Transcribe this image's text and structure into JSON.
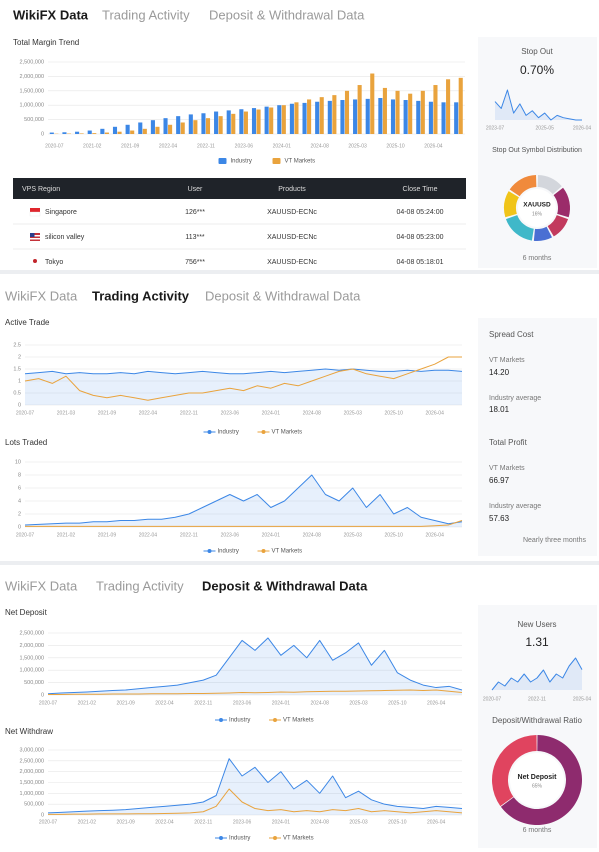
{
  "tabs": [
    "WikiFX Data",
    "Trading Activity",
    "Deposit & Withdrawal Data"
  ],
  "table": {
    "columns": [
      "VPS Region",
      "User",
      "Products",
      "Close Time"
    ],
    "rows": [
      [
        "Singapore",
        "126***",
        "XAUUSD-ECNc",
        "04-08 05:24:00"
      ],
      [
        "silicon valley",
        "113***",
        "XAUUSD-ECNc",
        "04-08 05:23:00"
      ],
      [
        "Tokyo",
        "756***",
        "XAUUSD-ECNc",
        "04-08 05:18:01"
      ]
    ]
  },
  "trading_card": {
    "spread_title": "Spread Cost",
    "spread_broker_label": "VT Markets",
    "spread_broker_value": "14.20",
    "spread_avg_label": "Industry average",
    "spread_avg_value": "18.01",
    "profit_title": "Total Profit",
    "profit_broker_label": "VT Markets",
    "profit_broker_value": "66.97",
    "profit_avg_label": "Industry average",
    "profit_avg_value": "57.63",
    "footnote": "Nearly three months"
  },
  "chart_data": [
    {
      "type": "bar",
      "title": "Total Margin Trend",
      "categories": [
        "2020-07",
        null,
        null,
        "2021-02",
        null,
        null,
        "2021-09",
        null,
        null,
        "2022-04",
        null,
        null,
        "2022-11",
        null,
        null,
        "2023-06",
        null,
        null,
        "2024-01",
        null,
        null,
        "2024-08",
        null,
        null,
        "2025-03",
        null,
        null,
        "2025-10",
        null,
        null,
        "2026-04",
        null,
        null
      ],
      "series": [
        {
          "name": "Industry",
          "color": "#3c87e6",
          "values": [
            50000,
            60000,
            80000,
            120000,
            180000,
            250000,
            320000,
            400000,
            480000,
            550000,
            620000,
            680000,
            720000,
            780000,
            820000,
            860000,
            900000,
            950000,
            1000000,
            1050000,
            1080000,
            1120000,
            1150000,
            1180000,
            1200000,
            1220000,
            1250000,
            1200000,
            1180000,
            1150000,
            1120000,
            1100000,
            1100000
          ]
        },
        {
          "name": "VT Markets",
          "color": "#e9a33d",
          "values": [
            10000,
            15000,
            20000,
            30000,
            50000,
            80000,
            120000,
            180000,
            250000,
            320000,
            400000,
            480000,
            550000,
            620000,
            700000,
            780000,
            850000,
            920000,
            1000000,
            1100000,
            1200000,
            1280000,
            1350000,
            1500000,
            1700000,
            2100000,
            1600000,
            1500000,
            1400000,
            1500000,
            1700000,
            1900000,
            1950000
          ]
        }
      ],
      "ylim": [
        0,
        2500000
      ],
      "yticks": [
        0,
        {
          "value": 500000,
          "label": "500,000"
        },
        {
          "value": 1000000,
          "label": "1,000,000"
        },
        {
          "value": 1500000,
          "label": "1,500,000"
        },
        {
          "value": 2000000,
          "label": "2,000,000"
        },
        {
          "value": 2500000,
          "label": "2,500,000"
        }
      ],
      "grid": true
    },
    {
      "type": "line",
      "title": "Stop Out",
      "headline": "0.70%",
      "categories": [
        "2023-07",
        null,
        null,
        null,
        null,
        null,
        null,
        null,
        "2025-05",
        null,
        null,
        null,
        null,
        null,
        "2026-04"
      ],
      "series": [
        {
          "color": "#3c87e6",
          "area": true,
          "values": [
            1.5,
            1.2,
            2.0,
            1.0,
            1.4,
            0.9,
            1.1,
            0.8,
            1.0,
            0.7,
            0.9,
            0.8,
            0.75,
            0.7,
            0.7
          ]
        }
      ]
    },
    {
      "type": "donut",
      "title": "Stop Out Symbol Distribution",
      "center_label": "XAUUSD",
      "center_value": "16%",
      "footnote": "6 months",
      "values": [
        14,
        16,
        12,
        10,
        18,
        14,
        16
      ],
      "colors": [
        "#d3d6dc",
        "#9b2c6a",
        "#c23a5e",
        "#4a6fd3",
        "#3fb8c9",
        "#f0c419",
        "#f08a3c"
      ]
    },
    {
      "type": "line",
      "title": "Active Trade",
      "categories": [
        "2020-07",
        null,
        null,
        "2021-03",
        null,
        null,
        "2021-09",
        null,
        null,
        "2022-04",
        null,
        null,
        "2022-11",
        null,
        null,
        "2023-06",
        null,
        null,
        "2024-01",
        null,
        null,
        "2024-08",
        null,
        null,
        "2025-03",
        null,
        null,
        "2025-10",
        null,
        null,
        "2026-04",
        null,
        null
      ],
      "series": [
        {
          "name": "Industry",
          "color": "#3c87e6",
          "area": true,
          "values": [
            1.3,
            1.35,
            1.4,
            1.3,
            1.35,
            1.3,
            1.3,
            1.35,
            1.3,
            1.4,
            1.35,
            1.3,
            1.35,
            1.4,
            1.35,
            1.3,
            1.3,
            1.35,
            1.4,
            1.35,
            1.4,
            1.45,
            1.5,
            1.45,
            1.5,
            1.45,
            1.4,
            1.4,
            1.45,
            1.4,
            1.45,
            1.45,
            1.4
          ]
        },
        {
          "name": "VT Markets",
          "color": "#e9a33d",
          "values": [
            1.0,
            1.1,
            0.9,
            1.2,
            0.6,
            0.4,
            0.3,
            0.4,
            0.3,
            0.2,
            0.3,
            0.4,
            0.5,
            0.5,
            0.6,
            0.7,
            0.6,
            0.8,
            0.7,
            0.9,
            0.8,
            1.0,
            1.2,
            1.4,
            1.5,
            1.3,
            1.2,
            1.1,
            1.3,
            1.5,
            1.7,
            2.0,
            2.0
          ]
        }
      ],
      "ylim": [
        0,
        2.5
      ],
      "yticks": [
        0,
        0.5,
        1,
        1.5,
        2,
        2.5
      ],
      "grid": true
    },
    {
      "type": "line",
      "title": "Lots Traded",
      "categories": [
        "2020-07",
        null,
        null,
        "2021-02",
        null,
        null,
        "2021-09",
        null,
        null,
        "2022-04",
        null,
        null,
        "2022-11",
        null,
        null,
        "2023-06",
        null,
        null,
        "2024-01",
        null,
        null,
        "2024-08",
        null,
        null,
        "2025-03",
        null,
        null,
        "2025-10",
        null,
        null,
        "2026-04",
        null,
        null
      ],
      "series": [
        {
          "name": "Industry",
          "color": "#3c87e6",
          "area": true,
          "values": [
            0.3,
            0.4,
            0.5,
            0.6,
            0.6,
            0.8,
            0.8,
            1.0,
            1.0,
            1.2,
            1.2,
            1.5,
            2,
            3,
            4,
            5,
            4,
            5,
            3,
            4,
            6,
            8,
            5,
            4,
            6,
            3,
            5,
            2,
            3,
            1.5,
            1,
            0.5,
            0.8
          ]
        },
        {
          "name": "VT Markets",
          "color": "#e9a33d",
          "values": [
            0.1,
            0.1,
            0.1,
            0.1,
            0.1,
            0.1,
            0.1,
            0.1,
            0.1,
            0.1,
            0.1,
            0.1,
            0.1,
            0.1,
            0.1,
            0.1,
            0.1,
            0.1,
            0.1,
            0.1,
            0.1,
            0.1,
            0.1,
            0.1,
            0.1,
            0.1,
            0.1,
            0.1,
            0.1,
            0.1,
            0.2,
            0.3,
            1.0
          ]
        }
      ],
      "ylim": [
        0,
        10
      ],
      "yticks": [
        0,
        2,
        4,
        6,
        8,
        10
      ],
      "grid": true
    },
    {
      "type": "line",
      "title": "Net Deposit",
      "categories": [
        "2020-07",
        null,
        null,
        "2021-02",
        null,
        null,
        "2021-09",
        null,
        null,
        "2022-04",
        null,
        null,
        "2022-11",
        null,
        null,
        "2023-06",
        null,
        null,
        "2024-01",
        null,
        null,
        "2024-08",
        null,
        null,
        "2025-03",
        null,
        null,
        "2025-10",
        null,
        null,
        "2026-04",
        null,
        null
      ],
      "series": [
        {
          "name": "Industry",
          "color": "#3c87e6",
          "area": true,
          "values": [
            50000,
            80000,
            100000,
            120000,
            150000,
            180000,
            200000,
            250000,
            300000,
            350000,
            400000,
            500000,
            600000,
            800000,
            1500000,
            2200000,
            1800000,
            2300000,
            1600000,
            2000000,
            1500000,
            2200000,
            1400000,
            1700000,
            2100000,
            1200000,
            1800000,
            900000,
            600000,
            400000,
            300000,
            350000,
            200000
          ]
        },
        {
          "name": "VT Markets",
          "color": "#e9a33d",
          "values": [
            20000,
            20000,
            30000,
            30000,
            30000,
            40000,
            40000,
            40000,
            50000,
            50000,
            50000,
            60000,
            60000,
            70000,
            80000,
            100000,
            90000,
            100000,
            120000,
            110000,
            130000,
            140000,
            150000,
            150000,
            160000,
            170000,
            180000,
            190000,
            200000,
            180000,
            200000,
            150000,
            100000
          ]
        }
      ],
      "ylim": [
        0,
        2500000
      ],
      "yticks": [
        0,
        {
          "value": 500000,
          "label": "500,000"
        },
        {
          "value": 1000000,
          "label": "1,000,000"
        },
        {
          "value": 1500000,
          "label": "1,500,000"
        },
        {
          "value": 2000000,
          "label": "2,000,000"
        },
        {
          "value": 2500000,
          "label": "2,500,000"
        }
      ],
      "grid": true
    },
    {
      "type": "line",
      "title": "Net Withdraw",
      "categories": [
        "2020-07",
        null,
        null,
        "2021-02",
        null,
        null,
        "2021-09",
        null,
        null,
        "2022-04",
        null,
        null,
        "2022-11",
        null,
        null,
        "2023-06",
        null,
        null,
        "2024-01",
        null,
        null,
        "2024-08",
        null,
        null,
        "2025-03",
        null,
        null,
        "2025-10",
        null,
        null,
        "2026-04",
        null,
        null
      ],
      "series": [
        {
          "name": "Industry",
          "color": "#3c87e6",
          "area": true,
          "values": [
            100000,
            120000,
            150000,
            180000,
            200000,
            220000,
            250000,
            300000,
            350000,
            400000,
            450000,
            500000,
            600000,
            900000,
            2600000,
            1800000,
            2200000,
            1500000,
            2000000,
            1200000,
            1600000,
            1000000,
            1800000,
            800000,
            1100000,
            700000,
            500000,
            400000,
            350000,
            300000,
            400000,
            350000,
            300000
          ]
        },
        {
          "name": "VT Markets",
          "color": "#e9a33d",
          "values": [
            30000,
            30000,
            40000,
            40000,
            50000,
            50000,
            50000,
            60000,
            60000,
            70000,
            80000,
            100000,
            150000,
            400000,
            1200000,
            600000,
            300000,
            200000,
            250000,
            150000,
            200000,
            150000,
            250000,
            200000,
            300000,
            150000,
            200000,
            150000,
            100000,
            150000,
            200000,
            150000,
            100000
          ]
        }
      ],
      "ylim": [
        0,
        3000000
      ],
      "yticks": [
        0,
        {
          "value": 500000,
          "label": "500,000"
        },
        {
          "value": 1000000,
          "label": "1,000,000"
        },
        {
          "value": 1500000,
          "label": "1,500,000"
        },
        {
          "value": 2000000,
          "label": "2,000,000"
        },
        {
          "value": 2500000,
          "label": "2,500,000"
        },
        {
          "value": 3000000,
          "label": "3,000,000"
        }
      ],
      "grid": true
    },
    {
      "type": "line",
      "title": "New Users",
      "headline": "1.31",
      "categories": [
        "2020-07",
        null,
        null,
        null,
        null,
        null,
        null,
        "2022-11",
        null,
        null,
        null,
        null,
        null,
        null,
        "2025-04"
      ],
      "series": [
        {
          "color": "#3c87e6",
          "area": true,
          "values": [
            0.8,
            1.0,
            0.9,
            1.1,
            1.0,
            1.2,
            1.0,
            1.1,
            1.3,
            1.0,
            1.2,
            1.1,
            1.4,
            1.6,
            1.31
          ]
        }
      ]
    },
    {
      "type": "donut",
      "title": "Deposit/Withdrawal Ratio",
      "center_label": "Net Deposit",
      "center_value": "65%",
      "footnote": "6 months",
      "values": [
        65,
        35
      ],
      "colors": [
        "#8e2b6e",
        "#e0445f"
      ]
    }
  ]
}
